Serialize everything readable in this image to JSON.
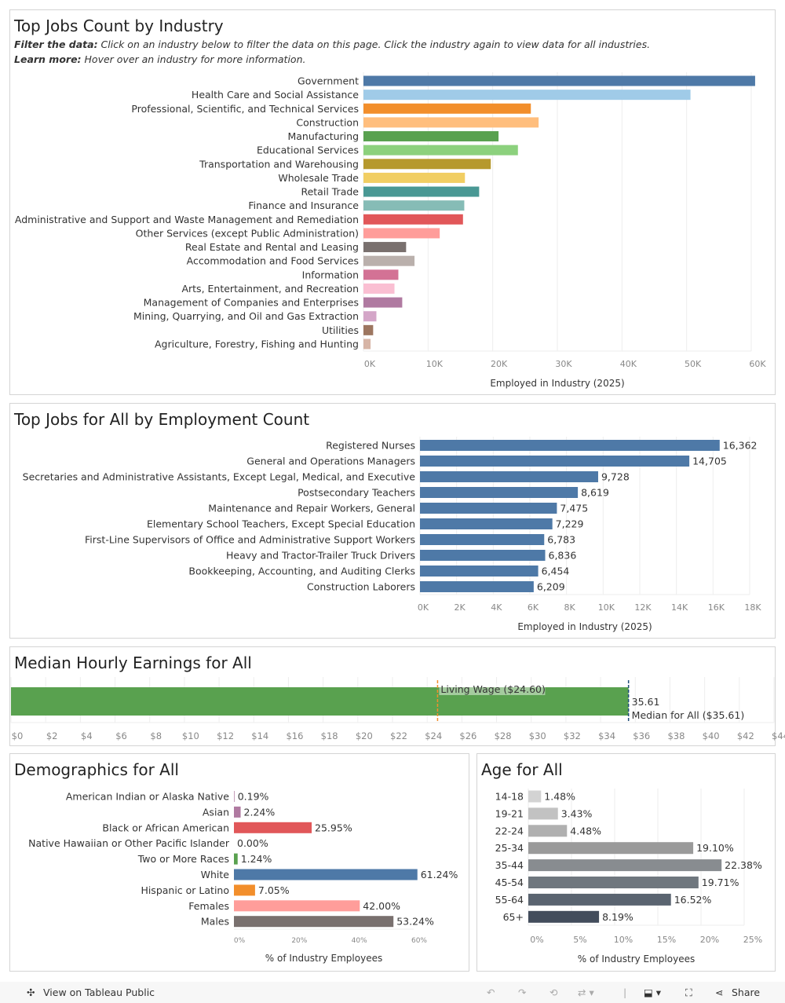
{
  "toolbar": {
    "view_label": "View on Tableau Public",
    "share_label": "Share",
    "icons": [
      "tableau-logo-icon",
      "undo-icon",
      "redo-icon",
      "revert-icon",
      "refresh-icon",
      "download-icon",
      "fullscreen-icon",
      "share-icon"
    ]
  },
  "panel1": {
    "title": "Top Jobs Count by Industry",
    "filter_bold": "Filter the data:",
    "filter_text": " Click on an industry below to filter the data on this page. Click the industry again to view data for all industries.",
    "learn_bold": "Learn more:",
    "learn_text": " Hover over an industry for more information."
  },
  "panel2": {
    "title": "Top Jobs for All by Employment Count"
  },
  "panel3": {
    "title": "Median Hourly Earnings for All"
  },
  "panel4": {
    "title": "Demographics for All"
  },
  "panel5": {
    "title": "Age for All"
  },
  "chart_data": [
    {
      "type": "bar",
      "orientation": "horizontal",
      "xlabel": "Employed in Industry (2025)",
      "xlim": [
        0,
        60000
      ],
      "ticks": [
        "0K",
        "10K",
        "20K",
        "30K",
        "40K",
        "50K",
        "60K"
      ],
      "grid": true,
      "categories": [
        "Government",
        "Health Care and Social Assistance",
        "Professional, Scientific, and Technical Services",
        "Construction",
        "Manufacturing",
        "Educational Services",
        "Transportation and Warehousing",
        "Wholesale Trade",
        "Retail Trade",
        "Finance and Insurance",
        "Administrative and Support and Waste Management and Remediation",
        "Other Services (except Public Administration)",
        "Real Estate and Rental and Leasing",
        "Accommodation and Food Services",
        "Information",
        "Arts, Entertainment, and Recreation",
        "Management of Companies and Enterprises",
        "Mining, Quarrying, and Oil and Gas Extraction",
        "Utilities",
        "Agriculture, Forestry, Fishing and Hunting"
      ],
      "values": [
        60600,
        50600,
        25900,
        27100,
        20900,
        23900,
        19700,
        15700,
        17900,
        15600,
        15400,
        11800,
        6600,
        7900,
        5400,
        4800,
        6000,
        2000,
        1500,
        1100
      ],
      "colors": [
        "#4e79a7",
        "#a0cbe8",
        "#f28e2b",
        "#ffbe7d",
        "#59a14f",
        "#8cd17d",
        "#b6992d",
        "#f1ce63",
        "#499894",
        "#86bcb6",
        "#e15759",
        "#ff9d9a",
        "#79706e",
        "#bab0ac",
        "#d37295",
        "#fabfd2",
        "#b07aa1",
        "#d4a6c8",
        "#9d7660",
        "#d7b5a6"
      ]
    },
    {
      "type": "bar",
      "orientation": "horizontal",
      "xlabel": "Employed in Industry (2025)",
      "xlim": [
        0,
        18000
      ],
      "ticks": [
        "0K",
        "2K",
        "4K",
        "6K",
        "8K",
        "10K",
        "12K",
        "14K",
        "16K",
        "18K"
      ],
      "grid": true,
      "color": "#4e79a7",
      "categories": [
        "Registered Nurses",
        "General and Operations Managers",
        "Secretaries and Administrative Assistants, Except Legal, Medical, and Executive",
        "Postsecondary Teachers",
        "Maintenance and Repair Workers, General",
        "Elementary School Teachers, Except Special Education",
        "First-Line Supervisors of Office and Administrative Support Workers",
        "Heavy and Tractor-Trailer Truck Drivers",
        "Bookkeeping, Accounting, and Auditing Clerks",
        "Construction Laborers"
      ],
      "values": [
        16362,
        14705,
        9728,
        8619,
        7475,
        7229,
        6783,
        6836,
        6454,
        6209
      ],
      "labels": [
        "16,362",
        "14,705",
        "9,728",
        "8,619",
        "7,475",
        "7,229",
        "6,783",
        "6,836",
        "6,454",
        "6,209"
      ]
    },
    {
      "type": "bar",
      "orientation": "horizontal",
      "xlim": [
        0,
        44
      ],
      "ticks": [
        "$0",
        "$2",
        "$4",
        "$6",
        "$8",
        "$10",
        "$12",
        "$14",
        "$16",
        "$18",
        "$20",
        "$22",
        "$24",
        "$26",
        "$28",
        "$30",
        "$32",
        "$34",
        "$36",
        "$38",
        "$40",
        "$42",
        "$44"
      ],
      "value": 35.61,
      "value_label": "35.61",
      "color": "#59a14f",
      "reference_lines": [
        {
          "label": "Living Wage ($24.60)",
          "value": 24.6,
          "color": "#f28e2b"
        },
        {
          "label": "Median for All ($35.61)",
          "value": 35.61,
          "color": "#1f4e79"
        }
      ]
    },
    {
      "type": "bar",
      "orientation": "horizontal",
      "xlabel": "% of Industry Employees",
      "xlim": [
        0,
        60
      ],
      "ticks": [
        "0%",
        "20%",
        "40%",
        "60%"
      ],
      "categories": [
        "American Indian or Alaska Native",
        "Asian",
        "Black or African American",
        "Native Hawaiian or Other Pacific Islander",
        "Two or More Races",
        "White",
        "Hispanic or Latino",
        "Females",
        "Males"
      ],
      "values": [
        0.19,
        2.24,
        25.95,
        0.0,
        1.24,
        61.24,
        7.05,
        42.0,
        53.24
      ],
      "labels": [
        "0.19%",
        "2.24%",
        "25.95%",
        "0.00%",
        "1.24%",
        "61.24%",
        "7.05%",
        "42.00%",
        "53.24%"
      ],
      "colors": [
        "#b07aa1",
        "#b07aa1",
        "#e15759",
        "#e15759",
        "#59a14f",
        "#4e79a7",
        "#f28e2b",
        "#ff9d9a",
        "#79706e"
      ]
    },
    {
      "type": "bar",
      "orientation": "horizontal",
      "xlabel": "% of Industry Employees",
      "xlim": [
        0,
        25
      ],
      "ticks": [
        "0%",
        "5%",
        "10%",
        "15%",
        "20%",
        "25%"
      ],
      "grid": true,
      "categories": [
        "14-18",
        "19-21",
        "22-24",
        "25-34",
        "35-44",
        "45-54",
        "55-64",
        "65+"
      ],
      "values": [
        1.48,
        3.43,
        4.48,
        19.1,
        22.38,
        19.71,
        16.52,
        8.19
      ],
      "labels": [
        "1.48%",
        "3.43%",
        "4.48%",
        "19.10%",
        "22.38%",
        "19.71%",
        "16.52%",
        "8.19%"
      ],
      "colors": [
        "#d3d3d3",
        "#c2c2c2",
        "#b0b0b0",
        "#9a9a9a",
        "#888c90",
        "#6f777e",
        "#5a6470",
        "#434d5c"
      ]
    }
  ]
}
